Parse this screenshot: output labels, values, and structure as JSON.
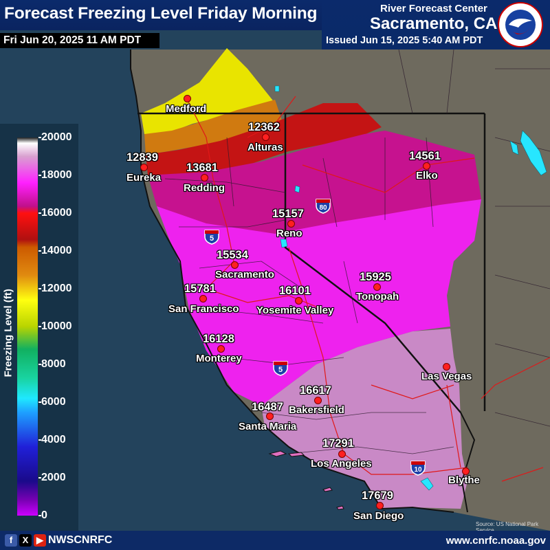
{
  "header": {
    "title": "Forecast Freezing Level Friday Morning",
    "valid_time": "Fri Jun 20, 2025 11 AM PDT",
    "rfc_line1": "River Forecast Center",
    "rfc_line2": "Sacramento, CA",
    "issued": "Issued Jun 15, 2025 5:40 AM PDT",
    "logo_text": "NATIONAL WEATHER SERVICE"
  },
  "legend": {
    "title": "Freezing Level (ft)",
    "labels": [
      "20000",
      "18000",
      "16000",
      "14000",
      "12000",
      "10000",
      "8000",
      "6000",
      "4000",
      "2000",
      "0"
    ]
  },
  "stations": [
    {
      "name": "Medford",
      "value": ""
    },
    {
      "name": "Alturas",
      "value": "12362"
    },
    {
      "name": "Eureka",
      "value": "12839"
    },
    {
      "name": "Redding",
      "value": "13681"
    },
    {
      "name": "Elko",
      "value": "14561"
    },
    {
      "name": "Reno",
      "value": "15157"
    },
    {
      "name": "Sacramento",
      "value": "15534"
    },
    {
      "name": "San Francisco",
      "value": "15781"
    },
    {
      "name": "Yosemite Valley",
      "value": "16101"
    },
    {
      "name": "Tonopah",
      "value": "15925"
    },
    {
      "name": "Monterey",
      "value": "16128"
    },
    {
      "name": "Bakersfield",
      "value": "16617"
    },
    {
      "name": "Santa Maria",
      "value": "16487"
    },
    {
      "name": "Los Angeles",
      "value": "17291"
    },
    {
      "name": "San Diego",
      "value": "17679"
    },
    {
      "name": "Las Vegas",
      "value": ""
    },
    {
      "name": "Blythe",
      "value": ""
    }
  ],
  "shields": {
    "i80": "80",
    "i5a": "5",
    "i5b": "5",
    "i10": "10"
  },
  "footer": {
    "social_handle": "NWSCNRFC",
    "website": "www.cnrfc.noaa.gov",
    "icons": [
      "facebook-icon",
      "x-icon",
      "youtube-icon"
    ]
  },
  "credit": "Source: US National Park Service",
  "colors": {
    "header_bg": "#0b2a6b",
    "dot": "#ff2020",
    "ocean": "#22445e"
  }
}
